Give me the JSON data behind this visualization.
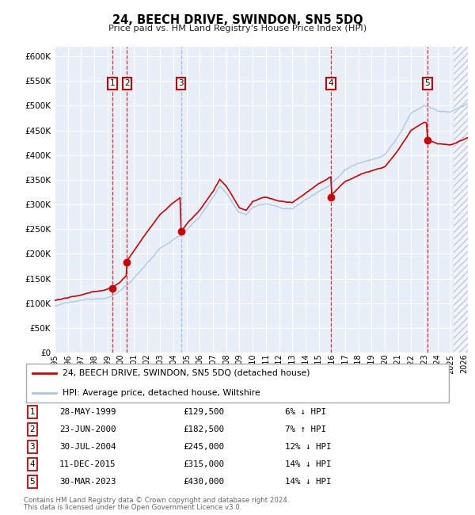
{
  "title": "24, BEECH DRIVE, SWINDON, SN5 5DQ",
  "subtitle": "Price paid vs. HM Land Registry's House Price Index (HPI)",
  "ylim": [
    0,
    620000
  ],
  "yticks": [
    0,
    50000,
    100000,
    150000,
    200000,
    250000,
    300000,
    350000,
    400000,
    450000,
    500000,
    550000,
    600000
  ],
  "xlim_start": 1995.0,
  "xlim_end": 2026.3,
  "xtick_years": [
    1995,
    1996,
    1997,
    1998,
    1999,
    2000,
    2001,
    2002,
    2003,
    2004,
    2005,
    2006,
    2007,
    2008,
    2009,
    2010,
    2011,
    2012,
    2013,
    2014,
    2015,
    2016,
    2017,
    2018,
    2019,
    2020,
    2021,
    2022,
    2023,
    2024,
    2025,
    2026
  ],
  "transactions": [
    {
      "num": 1,
      "date": "28-MAY-1999",
      "price": 129500,
      "year": 1999.38,
      "pct": "6%",
      "dir": "↓"
    },
    {
      "num": 2,
      "date": "23-JUN-2000",
      "price": 182500,
      "year": 2000.47,
      "pct": "7%",
      "dir": "↑"
    },
    {
      "num": 3,
      "date": "30-JUL-2004",
      "price": 245000,
      "year": 2004.57,
      "pct": "12%",
      "dir": "↓"
    },
    {
      "num": 4,
      "date": "11-DEC-2015",
      "price": 315000,
      "year": 2015.93,
      "pct": "14%",
      "dir": "↓"
    },
    {
      "num": 5,
      "date": "30-MAR-2023",
      "price": 430000,
      "year": 2023.24,
      "pct": "14%",
      "dir": "↓"
    }
  ],
  "legend_line1": "24, BEECH DRIVE, SWINDON, SN5 5DQ (detached house)",
  "legend_line2": "HPI: Average price, detached house, Wiltshire",
  "footer1": "Contains HM Land Registry data © Crown copyright and database right 2024.",
  "footer2": "This data is licensed under the Open Government Licence v3.0.",
  "hpi_color": "#a8c4e0",
  "price_color": "#cc0000",
  "background_color": "#e8eef8",
  "grid_color": "#ffffff",
  "label_box_color": "#cc0000",
  "dashed_line_color_red": "#cc0000",
  "dashed_line_color_blue": "#8ab0d0",
  "future_start": 2025.25
}
